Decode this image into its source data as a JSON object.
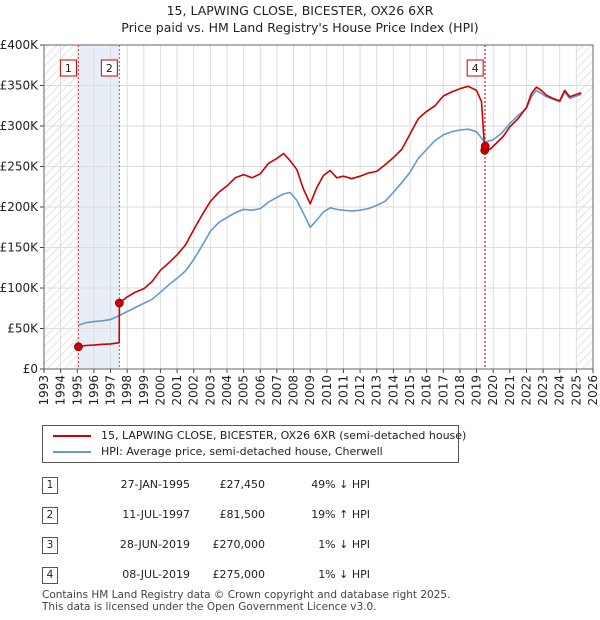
{
  "chart_data": {
    "type": "line",
    "title": "15, LAPWING CLOSE, BICESTER, OX26 6XR",
    "subtitle": "Price paid vs. HM Land Registry's House Price Index (HPI)",
    "xlim": [
      1993,
      2026
    ],
    "ylim": [
      0,
      400000
    ],
    "x_ticks": [
      "1993",
      "1994",
      "1995",
      "1996",
      "1997",
      "1998",
      "1999",
      "2000",
      "2001",
      "2002",
      "2003",
      "2004",
      "2005",
      "2006",
      "2007",
      "2008",
      "2009",
      "2010",
      "2011",
      "2012",
      "2013",
      "2014",
      "2015",
      "2016",
      "2017",
      "2018",
      "2019",
      "2020",
      "2021",
      "2022",
      "2023",
      "2024",
      "2025",
      "2026"
    ],
    "y_ticks": [
      "£0",
      "£50K",
      "£100K",
      "£150K",
      "£200K",
      "£250K",
      "£300K",
      "£350K",
      "£400K"
    ],
    "grid": true,
    "hatched_ranges": [
      [
        1993,
        1995.07
      ],
      [
        2025.0,
        2026
      ]
    ],
    "shaded_range": [
      1995.07,
      1997.53
    ],
    "series": [
      {
        "name": "15, LAPWING CLOSE, BICESTER, OX26 6XR (semi-detached house)",
        "color": "#cc0000",
        "x": [
          1995.07,
          1995.5,
          1996.0,
          1996.5,
          1997.0,
          1997.52,
          1997.53,
          1998.0,
          1998.5,
          1999.0,
          1999.5,
          2000.0,
          2000.5,
          2001.0,
          2001.5,
          2002.0,
          2002.5,
          2003.0,
          2003.5,
          2004.0,
          2004.5,
          2005.0,
          2005.5,
          2006.0,
          2006.5,
          2007.0,
          2007.4,
          2007.8,
          2008.2,
          2008.6,
          2009.0,
          2009.4,
          2009.8,
          2010.2,
          2010.6,
          2011.0,
          2011.5,
          2012.0,
          2012.5,
          2013.0,
          2013.5,
          2014.0,
          2014.5,
          2015.0,
          2015.5,
          2016.0,
          2016.5,
          2017.0,
          2017.5,
          2018.0,
          2018.5,
          2019.0,
          2019.3,
          2019.49,
          2019.52,
          2019.8,
          2020.2,
          2020.6,
          2021.0,
          2021.5,
          2022.0,
          2022.3,
          2022.6,
          2022.9,
          2023.2,
          2023.6,
          2024.0,
          2024.3,
          2024.6,
          2025.0,
          2025.3
        ],
        "y": [
          27450,
          29000,
          29500,
          30500,
          31000,
          32500,
          81500,
          89000,
          95000,
          99000,
          108000,
          122000,
          131000,
          141000,
          153000,
          172000,
          190000,
          207000,
          218000,
          226000,
          236000,
          240000,
          236000,
          241000,
          254000,
          260000,
          266000,
          257000,
          246000,
          222000,
          204000,
          224000,
          239000,
          245000,
          236000,
          238000,
          235000,
          238000,
          242000,
          244000,
          252000,
          261000,
          271000,
          290000,
          309000,
          318000,
          325000,
          337000,
          342000,
          346000,
          349000,
          344000,
          330000,
          270000,
          275000,
          271000,
          279000,
          287000,
          299000,
          309000,
          323000,
          340000,
          348000,
          344000,
          338000,
          334000,
          331000,
          344000,
          336000,
          339000,
          341000
        ]
      },
      {
        "name": "HPI: Average price, semi-detached house, Cherwell",
        "color": "#6699cc",
        "x": [
          1995.07,
          1995.5,
          1996.0,
          1996.5,
          1997.0,
          1997.53,
          1998.0,
          1998.5,
          1999.0,
          1999.5,
          2000.0,
          2000.5,
          2001.0,
          2001.5,
          2002.0,
          2002.5,
          2003.0,
          2003.5,
          2004.0,
          2004.5,
          2005.0,
          2005.5,
          2006.0,
          2006.5,
          2007.0,
          2007.4,
          2007.8,
          2008.2,
          2008.6,
          2009.0,
          2009.4,
          2009.8,
          2010.2,
          2010.6,
          2011.0,
          2011.5,
          2012.0,
          2012.5,
          2013.0,
          2013.5,
          2014.0,
          2014.5,
          2015.0,
          2015.5,
          2016.0,
          2016.5,
          2017.0,
          2017.5,
          2018.0,
          2018.5,
          2019.0,
          2019.5,
          2020.0,
          2020.5,
          2021.0,
          2021.5,
          2022.0,
          2022.3,
          2022.6,
          2022.9,
          2023.2,
          2023.6,
          2024.0,
          2024.3,
          2024.6,
          2025.0,
          2025.3
        ],
        "y": [
          54000,
          57000,
          58500,
          59500,
          61000,
          66000,
          71000,
          76000,
          81000,
          86000,
          95000,
          104000,
          112000,
          121000,
          135000,
          152000,
          170000,
          181000,
          187000,
          193000,
          197000,
          196000,
          198000,
          206000,
          212000,
          216000,
          218000,
          208000,
          192000,
          175000,
          184000,
          194000,
          199000,
          197000,
          196000,
          195000,
          196000,
          198000,
          202000,
          207000,
          218000,
          230000,
          243000,
          260000,
          271000,
          282000,
          289000,
          293000,
          295000,
          296000,
          293000,
          280000,
          283000,
          291000,
          303000,
          313000,
          322000,
          336000,
          344000,
          340000,
          336000,
          333000,
          330000,
          342000,
          334000,
          337000,
          339000
        ]
      }
    ],
    "sales": [
      {
        "label": "1",
        "x": 1995.07,
        "y": 27450
      },
      {
        "label": "2",
        "x": 1997.53,
        "y": 81500
      },
      {
        "label": "3",
        "x": 2019.49,
        "y": 270000
      },
      {
        "label": "4",
        "x": 2019.52,
        "y": 275000
      }
    ],
    "boxed_markers": [
      "1",
      "2",
      "4"
    ]
  },
  "legend": {
    "property_label": "15, LAPWING CLOSE, BICESTER, OX26 6XR (semi-detached house)",
    "hpi_label": "HPI: Average price, semi-detached house, Cherwell",
    "property_color": "#cc0000",
    "hpi_color": "#6699cc"
  },
  "transactions": [
    {
      "num": "1",
      "date": "27-JAN-1995",
      "price": "£27,450",
      "hpi": "49% ↓ HPI"
    },
    {
      "num": "2",
      "date": "11-JUL-1997",
      "price": "£81,500",
      "hpi": "19% ↑ HPI"
    },
    {
      "num": "3",
      "date": "28-JUN-2019",
      "price": "£270,000",
      "hpi": "1% ↓ HPI"
    },
    {
      "num": "4",
      "date": "08-JUL-2019",
      "price": "£275,000",
      "hpi": "1% ↓ HPI"
    }
  ],
  "footer": {
    "line1": "Contains HM Land Registry data © Crown copyright and database right 2025.",
    "line2": "This data is licensed under the Open Government Licence v3.0."
  }
}
